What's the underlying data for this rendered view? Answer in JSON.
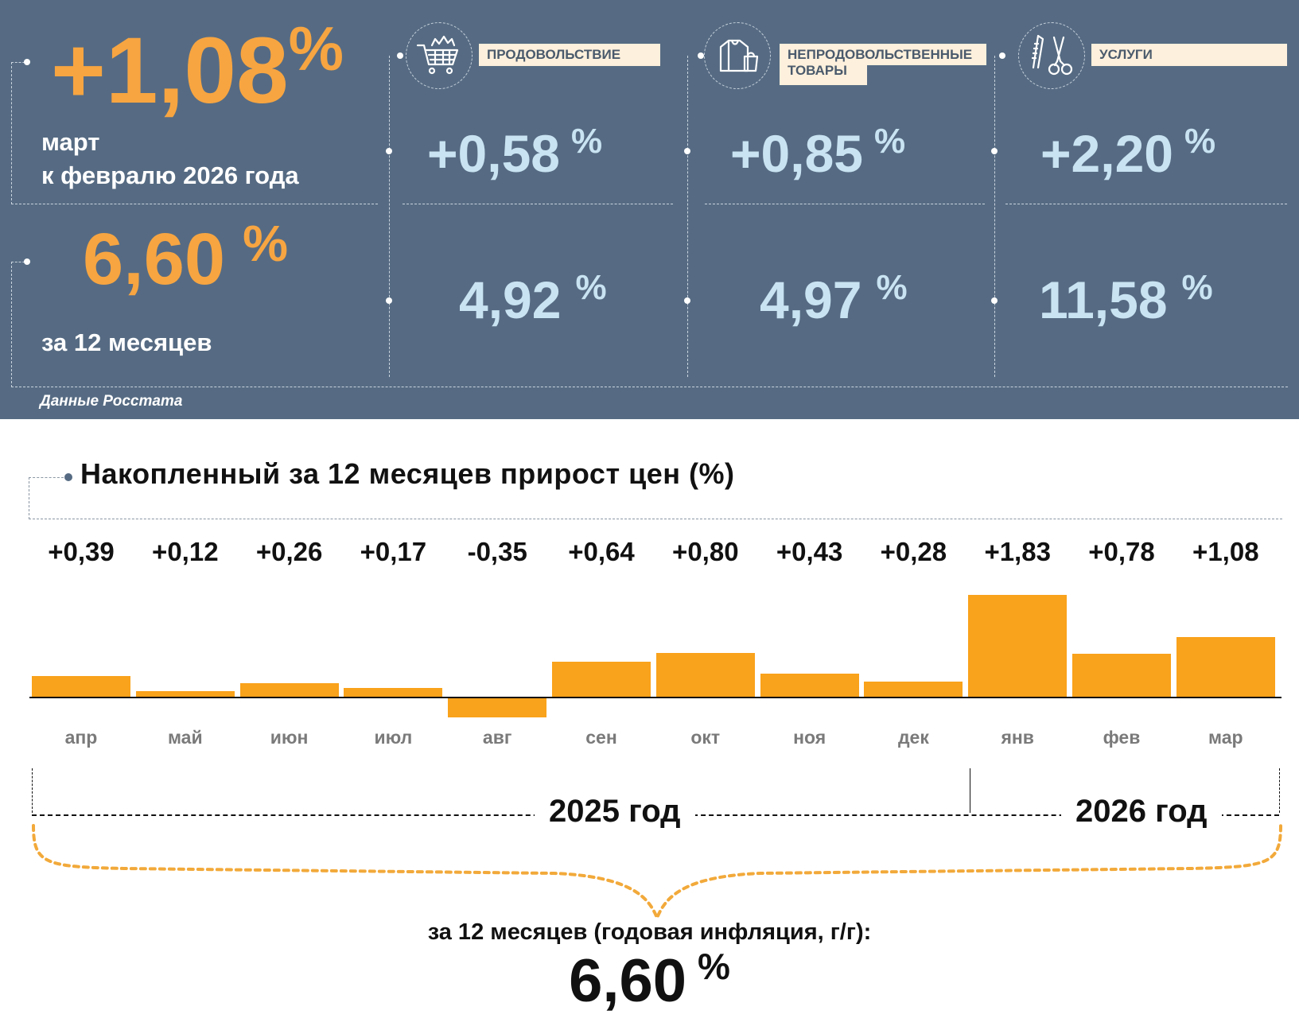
{
  "header": {
    "monthly": {
      "value": "+1,08",
      "pct": "%",
      "label_line1": "март",
      "label_line2": "к февралю 2026 года"
    },
    "annual": {
      "value": "6,60",
      "pct": "%",
      "label": "за 12 месяцев"
    },
    "categories": [
      {
        "label": "ПРОДОВОЛЬСТВИЕ",
        "icon": "shopping-cart-icon",
        "monthly": "+0,58",
        "annual": "4,92",
        "pct": "%"
      },
      {
        "label": "НЕПРОДОВОЛЬСТВЕННЫЕ ТОВАРЫ",
        "label_line1": "НЕПРОДОВОЛЬСТВЕННЫЕ",
        "label_line2": "ТОВАРЫ",
        "icon": "clothing-bag-icon",
        "monthly": "+0,85",
        "annual": "4,97",
        "pct": "%"
      },
      {
        "label": "УСЛУГИ",
        "icon": "scissors-comb-icon",
        "monthly": "+2,20",
        "annual": "11,58",
        "pct": "%"
      }
    ],
    "source": "Данные Росстата"
  },
  "chart_data": {
    "type": "bar",
    "title": "Накопленный за 12 месяцев прирост цен (%)",
    "categories": [
      "апр",
      "май",
      "июн",
      "июл",
      "авг",
      "сен",
      "окт",
      "ноя",
      "дек",
      "янв",
      "фев",
      "мар"
    ],
    "values": [
      0.39,
      0.12,
      0.26,
      0.17,
      -0.35,
      0.64,
      0.8,
      0.43,
      0.28,
      1.83,
      0.78,
      1.08
    ],
    "value_labels": [
      "+0,39",
      "+0,12",
      "+0,26",
      "+0,17",
      "-0,35",
      "+0,64",
      "+0,80",
      "+0,43",
      "+0,28",
      "+1,83",
      "+0,78",
      "+1,08"
    ],
    "years": [
      {
        "label": "2025 год",
        "from": "апр",
        "to": "дек"
      },
      {
        "label": "2026 год",
        "from": "янв",
        "to": "мар"
      }
    ],
    "summary_label": "за 12 месяцев (годовая инфляция, г/г):",
    "summary_value": "6,60",
    "summary_pct": "%",
    "colors": {
      "bar": "#f9a21b",
      "panel": "#566b83",
      "accent_orange": "#f7a541",
      "accent_blue": "#c9e3f2"
    }
  }
}
